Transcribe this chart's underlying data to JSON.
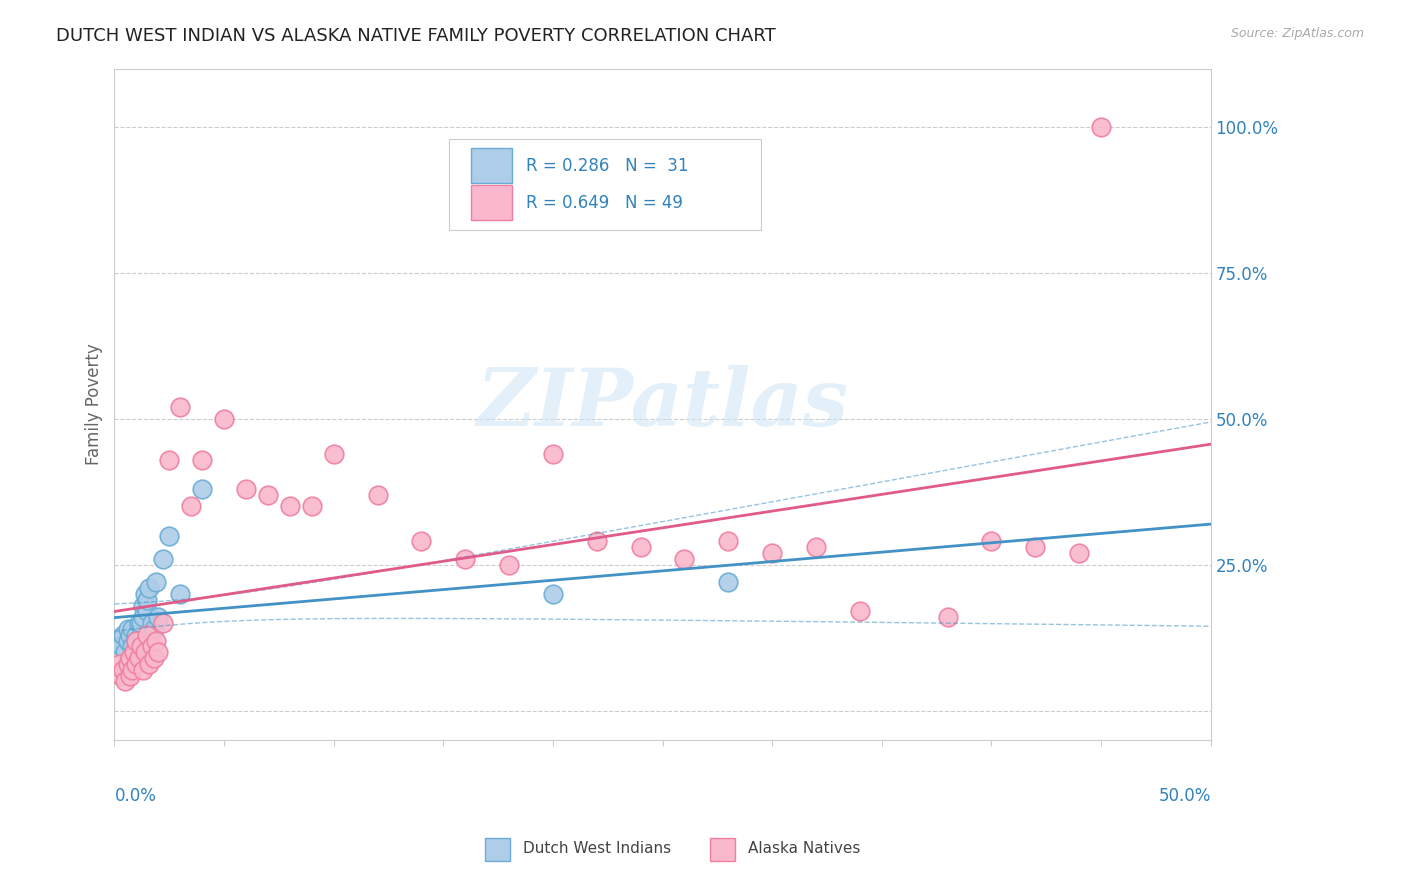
{
  "title": "DUTCH WEST INDIAN VS ALASKA NATIVE FAMILY POVERTY CORRELATION CHART",
  "source": "Source: ZipAtlas.com",
  "ylabel": "Family Poverty",
  "y_ticks": [
    0.0,
    0.25,
    0.5,
    0.75,
    1.0
  ],
  "y_tick_labels": [
    "",
    "25.0%",
    "50.0%",
    "75.0%",
    "100.0%"
  ],
  "x_range": [
    0.0,
    0.5
  ],
  "y_range": [
    -0.05,
    1.1
  ],
  "watermark": "ZIPatlas",
  "legend_r1": "R = 0.286",
  "legend_n1": "N =  31",
  "legend_r2": "R = 0.649",
  "legend_n2": "N = 49",
  "blue_scatter_face": "#aecde8",
  "blue_scatter_edge": "#6aacd5",
  "pink_scatter_face": "#f9b8cb",
  "pink_scatter_edge": "#f07fa0",
  "line_blue": "#4292c6",
  "line_pink": "#e05a8a",
  "label_color": "#3182bd",
  "dutch_west_x": [
    0.002,
    0.003,
    0.004,
    0.005,
    0.006,
    0.006,
    0.007,
    0.008,
    0.008,
    0.009,
    0.01,
    0.01,
    0.011,
    0.012,
    0.012,
    0.013,
    0.013,
    0.014,
    0.015,
    0.015,
    0.016,
    0.017,
    0.018,
    0.019,
    0.02,
    0.022,
    0.025,
    0.03,
    0.04,
    0.2,
    0.28
  ],
  "dutch_west_y": [
    0.12,
    0.11,
    0.13,
    0.1,
    0.14,
    0.12,
    0.13,
    0.11,
    0.14,
    0.1,
    0.13,
    0.12,
    0.15,
    0.13,
    0.15,
    0.18,
    0.16,
    0.2,
    0.17,
    0.19,
    0.21,
    0.15,
    0.14,
    0.22,
    0.16,
    0.26,
    0.3,
    0.2,
    0.38,
    0.2,
    0.22
  ],
  "alaska_x": [
    0.002,
    0.003,
    0.004,
    0.005,
    0.006,
    0.007,
    0.007,
    0.008,
    0.009,
    0.01,
    0.01,
    0.011,
    0.012,
    0.013,
    0.014,
    0.015,
    0.016,
    0.017,
    0.018,
    0.019,
    0.02,
    0.022,
    0.025,
    0.03,
    0.035,
    0.04,
    0.05,
    0.06,
    0.07,
    0.08,
    0.09,
    0.1,
    0.12,
    0.14,
    0.16,
    0.18,
    0.2,
    0.22,
    0.24,
    0.26,
    0.28,
    0.3,
    0.32,
    0.34,
    0.38,
    0.4,
    0.42,
    0.44,
    0.45
  ],
  "alaska_y": [
    0.08,
    0.06,
    0.07,
    0.05,
    0.08,
    0.06,
    0.09,
    0.07,
    0.1,
    0.08,
    0.12,
    0.09,
    0.11,
    0.07,
    0.1,
    0.13,
    0.08,
    0.11,
    0.09,
    0.12,
    0.1,
    0.15,
    0.43,
    0.52,
    0.35,
    0.43,
    0.5,
    0.38,
    0.37,
    0.35,
    0.35,
    0.44,
    0.37,
    0.29,
    0.26,
    0.25,
    0.44,
    0.29,
    0.28,
    0.26,
    0.29,
    0.27,
    0.28,
    0.17,
    0.16,
    0.29,
    0.28,
    0.27,
    1.0
  ]
}
